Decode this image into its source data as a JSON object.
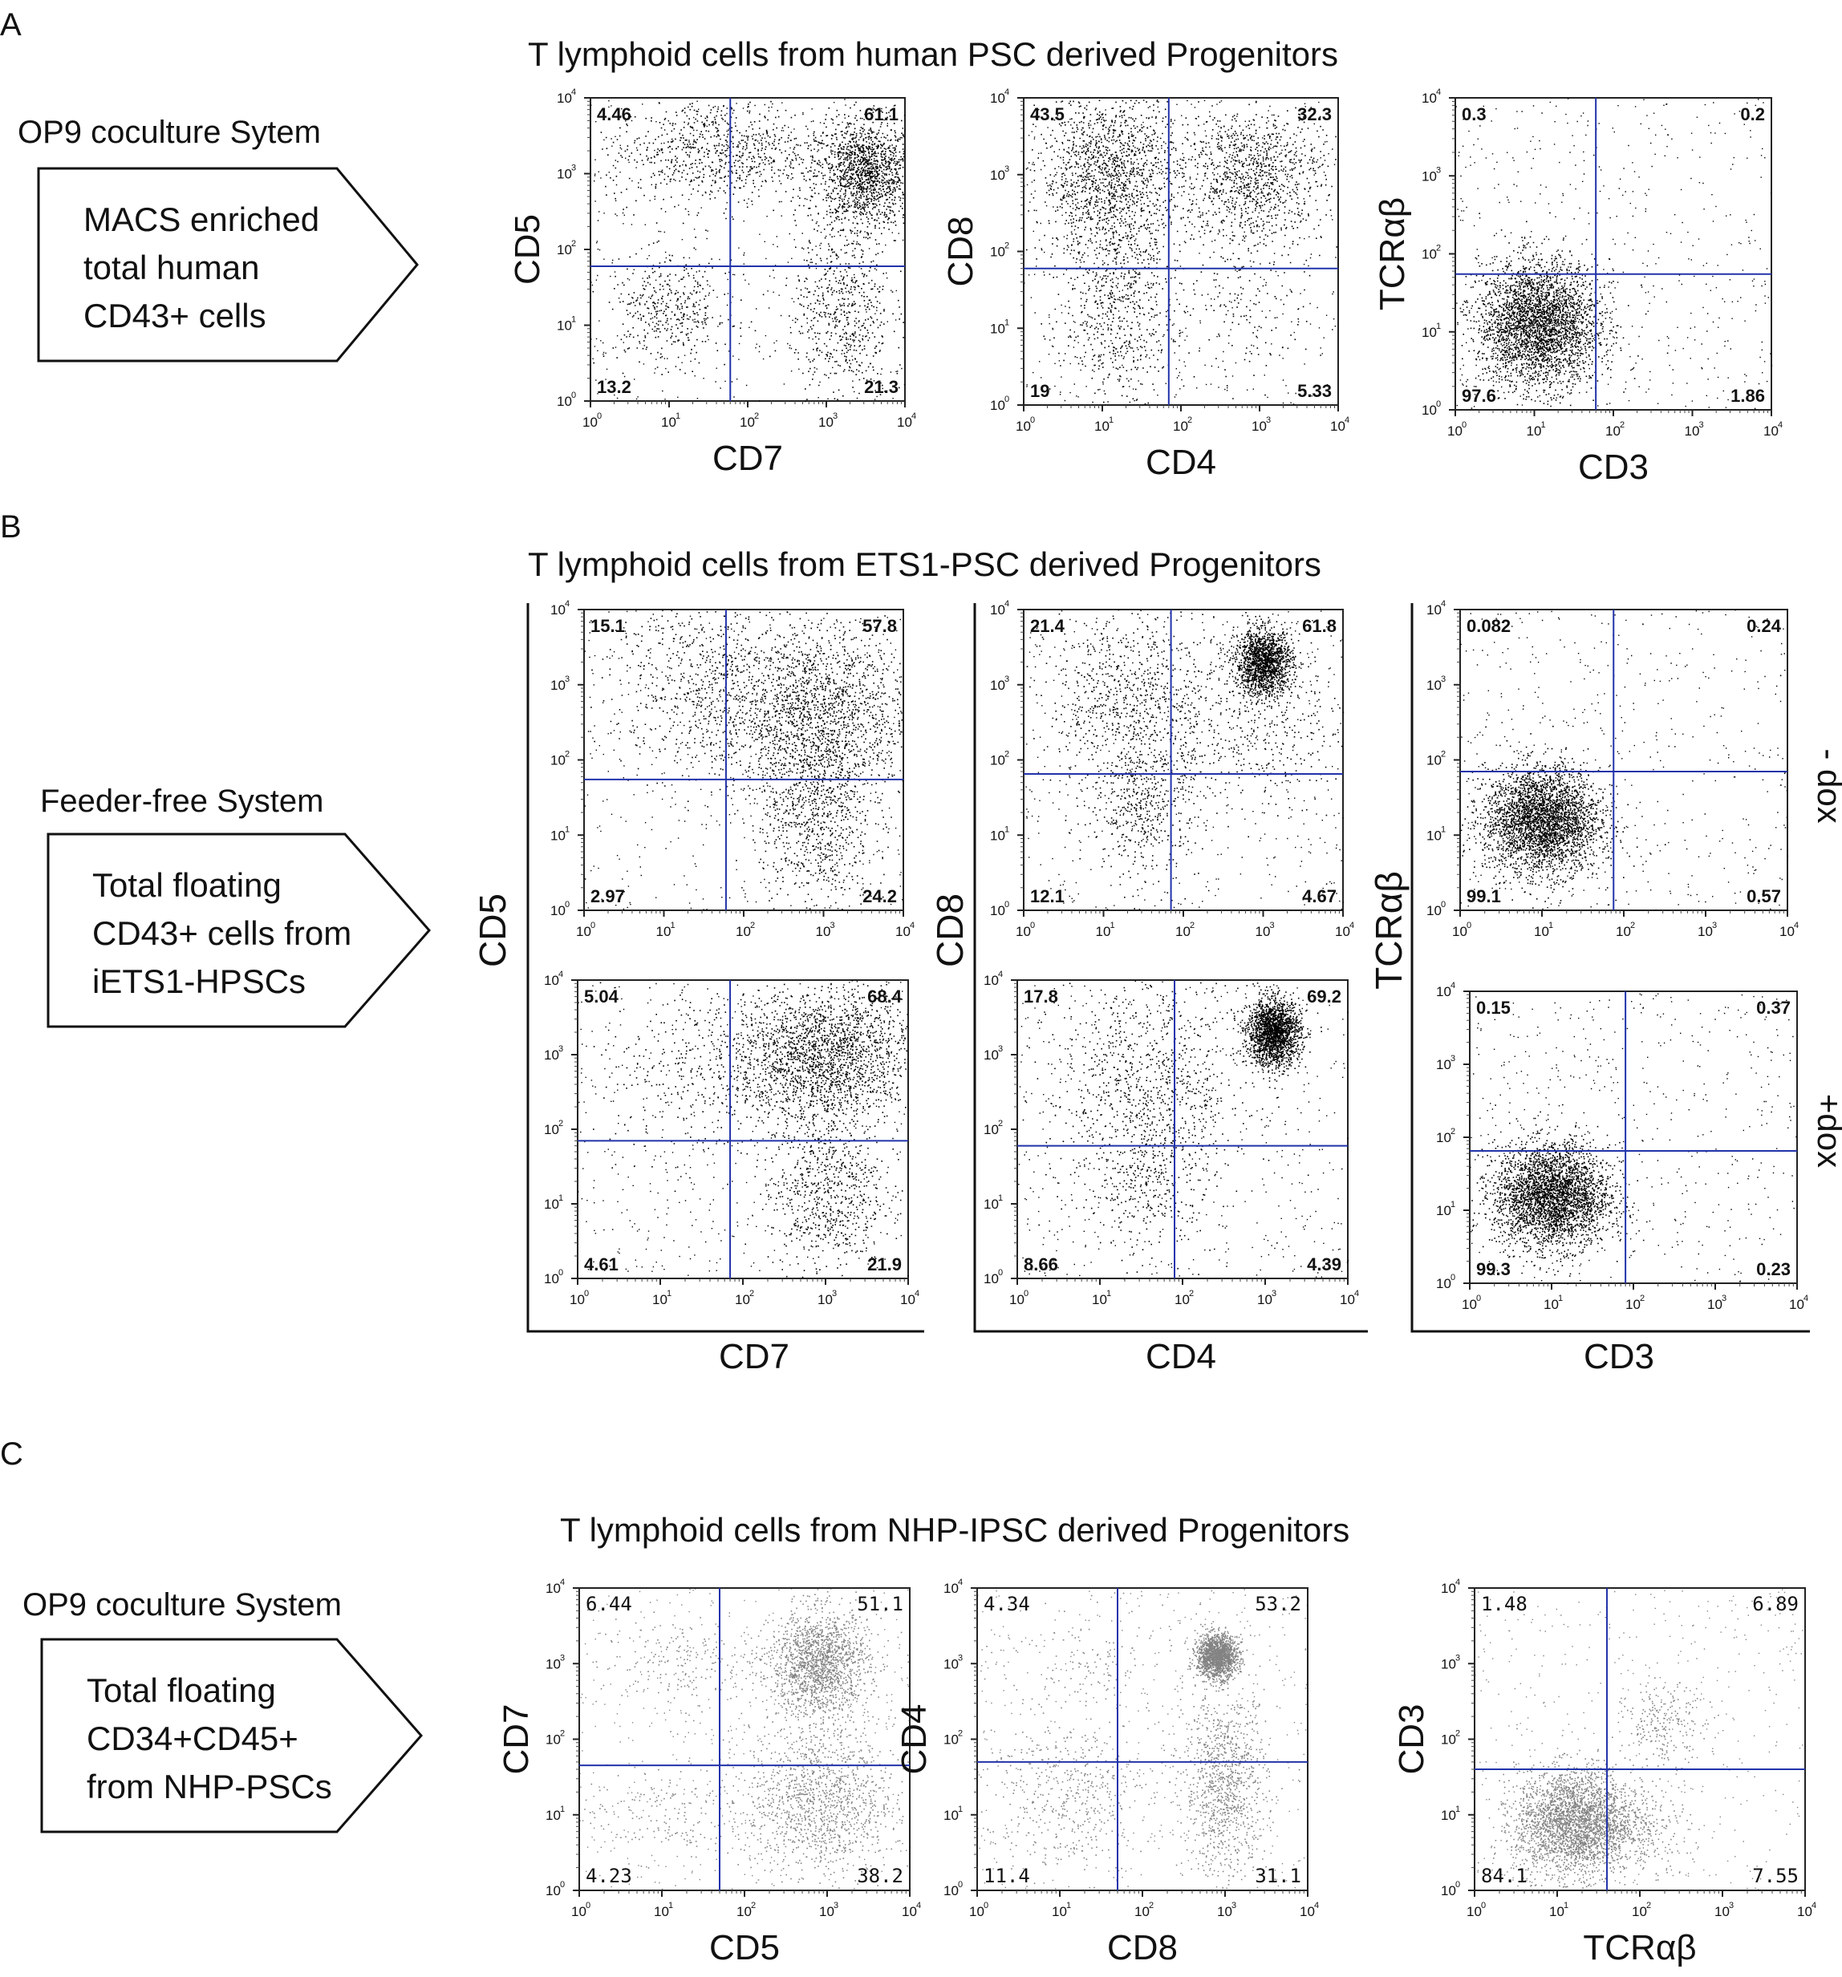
{
  "sections": [
    {
      "letter": "A",
      "title": "T lymphoid cells from human PSC derived Progenitors",
      "system": "OP9 coculture Sytem",
      "box_lines": [
        "MACS enriched",
        "total human",
        "CD43+ cells"
      ]
    },
    {
      "letter": "B",
      "title": "T lymphoid cells from ETS1-PSC derived Progenitors",
      "system": "Feeder-free System",
      "box_lines": [
        "Total floating",
        "CD43+ cells from",
        "iETS1-HPSCs"
      ],
      "row_labels": [
        "- dox",
        "+dox"
      ],
      "group_ylabels": [
        "CD5",
        "CD8",
        "TCRαβ"
      ],
      "group_xlabels": [
        "CD7",
        "CD4",
        "CD3"
      ]
    },
    {
      "letter": "C",
      "title": "T lymphoid cells from NHP-IPSC derived Progenitors",
      "system": "OP9 coculture System",
      "box_lines": [
        "Total floating",
        "CD34+CD45+",
        "from NHP-PSCs"
      ]
    }
  ],
  "tick_labels": [
    "10",
    "10",
    "10",
    "10",
    "10"
  ],
  "tick_exponents": [
    "0",
    "1",
    "2",
    "3",
    "4"
  ],
  "chart_data": [
    {
      "panel": "A1",
      "type": "scatter",
      "xlabel": "CD7",
      "ylabel": "CD5",
      "xlim": [
        1,
        10000
      ],
      "ylim": [
        1,
        10000
      ],
      "scale": "log",
      "gate": [
        60,
        60
      ],
      "quadrants": {
        "ul": "4.46",
        "ur": "61.1",
        "ll": "13.2",
        "lr": "21.3"
      }
    },
    {
      "panel": "A2",
      "type": "scatter",
      "xlabel": "CD4",
      "ylabel": "CD8",
      "xlim": [
        1,
        10000
      ],
      "ylim": [
        1,
        10000
      ],
      "scale": "log",
      "gate": [
        70,
        60
      ],
      "quadrants": {
        "ul": "43.5",
        "ur": "32.3",
        "ll": "19",
        "lr": "5.33"
      }
    },
    {
      "panel": "A3",
      "type": "scatter",
      "xlabel": "CD3",
      "ylabel": "TCRαβ",
      "xlim": [
        1,
        10000
      ],
      "ylim": [
        1,
        10000
      ],
      "scale": "log",
      "gate": [
        60,
        55
      ],
      "quadrants": {
        "ul": "0.3",
        "ur": "0.2",
        "ll": "97.6",
        "lr": "1.86"
      }
    },
    {
      "panel": "B1",
      "type": "scatter",
      "xlabel": "CD7",
      "ylabel": "CD5",
      "condition": "- dox",
      "xlim": [
        1,
        10000
      ],
      "ylim": [
        1,
        10000
      ],
      "scale": "log",
      "gate": [
        60,
        55
      ],
      "quadrants": {
        "ul": "15.1",
        "ur": "57.8",
        "ll": "2.97",
        "lr": "24.2"
      }
    },
    {
      "panel": "B2",
      "type": "scatter",
      "xlabel": "CD4",
      "ylabel": "CD8",
      "condition": "- dox",
      "xlim": [
        1,
        10000
      ],
      "ylim": [
        1,
        10000
      ],
      "scale": "log",
      "gate": [
        70,
        65
      ],
      "quadrants": {
        "ul": "21.4",
        "ur": "61.8",
        "ll": "12.1",
        "lr": "4.67"
      }
    },
    {
      "panel": "B3",
      "type": "scatter",
      "xlabel": "CD3",
      "ylabel": "TCRαβ",
      "condition": "- dox",
      "xlim": [
        1,
        10000
      ],
      "ylim": [
        1,
        10000
      ],
      "scale": "log",
      "gate": [
        75,
        70
      ],
      "quadrants": {
        "ul": "0.082",
        "ur": "0.24",
        "ll": "99.1",
        "lr": "0.57"
      }
    },
    {
      "panel": "B4",
      "type": "scatter",
      "xlabel": "CD7",
      "ylabel": "CD5",
      "condition": "+dox",
      "xlim": [
        1,
        10000
      ],
      "ylim": [
        1,
        10000
      ],
      "scale": "log",
      "gate": [
        70,
        70
      ],
      "quadrants": {
        "ul": "5.04",
        "ur": "68.4",
        "ll": "4.61",
        "lr": "21.9"
      }
    },
    {
      "panel": "B5",
      "type": "scatter",
      "xlabel": "CD4",
      "ylabel": "CD8",
      "condition": "+dox",
      "xlim": [
        1,
        10000
      ],
      "ylim": [
        1,
        10000
      ],
      "scale": "log",
      "gate": [
        80,
        60
      ],
      "quadrants": {
        "ul": "17.8",
        "ur": "69.2",
        "ll": "8.66",
        "lr": "4.39"
      }
    },
    {
      "panel": "B6",
      "type": "scatter",
      "xlabel": "CD3",
      "ylabel": "TCRαβ",
      "condition": "+dox",
      "xlim": [
        1,
        10000
      ],
      "ylim": [
        1,
        10000
      ],
      "scale": "log",
      "gate": [
        80,
        65
      ],
      "quadrants": {
        "ul": "0.15",
        "ur": "0.37",
        "ll": "99.3",
        "lr": "0.23"
      }
    },
    {
      "panel": "C1",
      "type": "scatter",
      "xlabel": "CD5",
      "ylabel": "CD7",
      "xlim": [
        1,
        10000
      ],
      "ylim": [
        1,
        10000
      ],
      "scale": "log",
      "gate": [
        50,
        45
      ],
      "quadrants": {
        "ul": "6.44",
        "ur": "51.1",
        "ll": "4.23",
        "lr": "38.2"
      }
    },
    {
      "panel": "C2",
      "type": "scatter",
      "xlabel": "CD8",
      "ylabel": "CD4",
      "xlim": [
        1,
        10000
      ],
      "ylim": [
        1,
        10000
      ],
      "scale": "log",
      "gate": [
        50,
        50
      ],
      "quadrants": {
        "ul": "4.34",
        "ur": "53.2",
        "ll": "11.4",
        "lr": "31.1"
      }
    },
    {
      "panel": "C3",
      "type": "scatter",
      "xlabel": "TCRαβ",
      "ylabel": "CD3",
      "xlim": [
        1,
        10000
      ],
      "ylim": [
        1,
        10000
      ],
      "scale": "log",
      "gate": [
        40,
        40
      ],
      "quadrants": {
        "ul": "1.48",
        "ur": "6.89",
        "ll": "84.1",
        "lr": "7.55"
      }
    }
  ]
}
